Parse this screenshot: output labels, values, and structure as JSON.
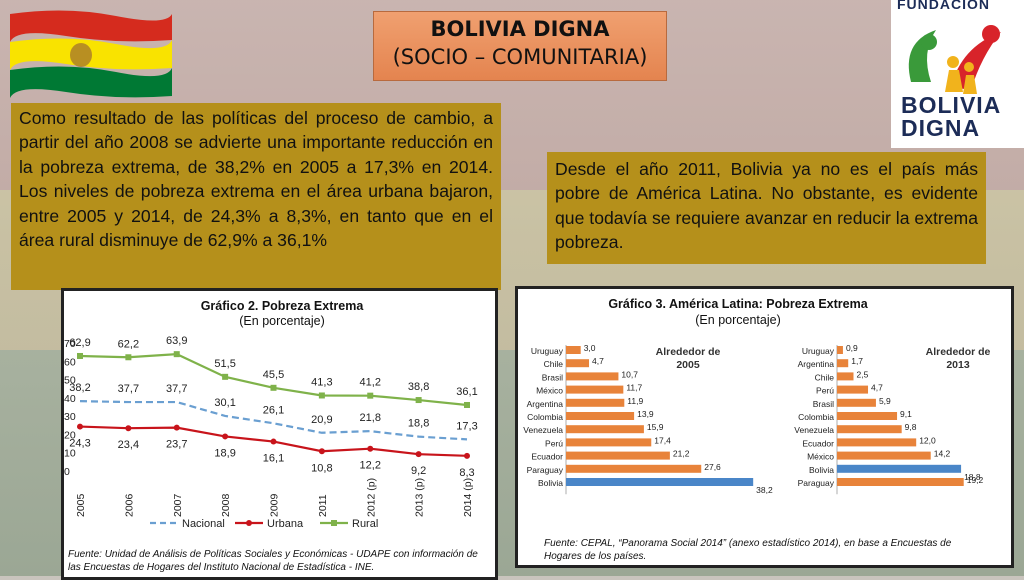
{
  "header": {
    "title_line1": "BOLIVIA DIGNA",
    "title_line2": "(SOCIO – COMUNITARIA)"
  },
  "logo": {
    "top_text": "FUNDACION",
    "line1": "BOLIVIA",
    "line2": "DIGNA"
  },
  "colors": {
    "flag_red": "#d52b1e",
    "flag_yellow": "#f9e300",
    "flag_green": "#007934",
    "text_box": "#b5901b",
    "title_box": "#e8905c",
    "rural": "#7fb24a",
    "urbana": "#c8141b",
    "nacional": "#6a9fd1",
    "bar_orange": "#e8833a",
    "bar_bolivia_2005": "#4a86c8"
  },
  "left_paragraph": "Como resultado de las políticas del proceso de cambio, a partir del año 2008 se advierte una importante reducción en la pobreza extrema, de 38,2% en 2005 a 17,3% en 2014. Los niveles de pobreza extrema en el área urbana bajaron, entre 2005 y 2014, de 24,3% a 8,3%, en tanto que en el área rural disminuye de 62,9% a 36,1%",
  "right_paragraph": "Desde el año 2011, Bolivia ya no es el país más pobre de América Latina. No obstante, es evidente que todavía se requiere avanzar en reducir la extrema pobreza.",
  "chart_data": [
    {
      "type": "line",
      "title": "Gráfico 2. Pobreza Extrema",
      "subtitle": "(En porcentaje)",
      "x": [
        "2005",
        "2006",
        "2007",
        "2008",
        "2009",
        "2011",
        "2012 (p)",
        "2013 (p)",
        "2014 (p)"
      ],
      "ylim": [
        0,
        70
      ],
      "yticks": [
        0,
        10,
        20,
        30,
        40,
        50,
        60,
        70
      ],
      "series": [
        {
          "name": "Rural",
          "values": [
            62.9,
            62.2,
            63.9,
            51.5,
            45.5,
            41.3,
            41.2,
            38.8,
            36.1
          ],
          "labels": [
            "62,9",
            "62,2",
            "63,9",
            "51,5",
            "45,5",
            "41,3",
            "41,2",
            "38,8",
            "36,1"
          ]
        },
        {
          "name": "Nacional",
          "values": [
            38.2,
            37.7,
            37.7,
            30.1,
            26.1,
            20.9,
            21.8,
            18.8,
            17.3
          ],
          "labels": [
            "38,2",
            "37,7",
            "37,7",
            "30,1",
            "26,1",
            "20,9",
            "21,8",
            "18,8",
            "17,3"
          ]
        },
        {
          "name": "Urbana",
          "values": [
            24.3,
            23.4,
            23.7,
            18.9,
            16.1,
            10.8,
            12.2,
            9.2,
            8.3
          ],
          "labels": [
            "24,3",
            "23,4",
            "23,7",
            "18,9",
            "16,1",
            "10,8",
            "12,2",
            "9,2",
            "8,3"
          ]
        }
      ],
      "legend_order": [
        "Nacional",
        "Urbana",
        "Rural"
      ],
      "source": "Fuente: Unidad de Análisis de Políticas Sociales y Económicas - UDAPE con información de las Encuestas de Hogares del Instituto Nacional de Estadística - INE."
    },
    {
      "type": "bar",
      "title": "Gráfico 3.  América Latina: Pobreza Extrema",
      "subtitle": "(En porcentaje)",
      "panels": [
        {
          "label": "Alrededor de 2005",
          "categories": [
            "Uruguay",
            "Chile",
            "Brasil",
            "México",
            "Argentina",
            "Colombia",
            "Venezuela",
            "Perú",
            "Ecuador",
            "Paraguay",
            "Bolivia"
          ],
          "values": [
            3.0,
            4.7,
            10.7,
            11.7,
            11.9,
            13.9,
            15.9,
            17.4,
            21.2,
            27.6,
            38.2
          ],
          "labels": [
            "3,0",
            "4,7",
            "10,7",
            "11,7",
            "11,9",
            "13,9",
            "15,9",
            "17,4",
            "21,2",
            "27,6",
            "38,2"
          ],
          "highlight": "Bolivia"
        },
        {
          "label": "Alrededor de 2013",
          "categories": [
            "Uruguay",
            "Argentina",
            "Chile",
            "Perú",
            "Brasil",
            "Colombia",
            "Venezuela",
            "Ecuador",
            "México",
            "Bolivia",
            "Paraguay"
          ],
          "values": [
            0.9,
            1.7,
            2.5,
            4.7,
            5.9,
            9.1,
            9.8,
            12.0,
            14.2,
            18.8,
            19.2
          ],
          "labels": [
            "0,9",
            "1,7",
            "2,5",
            "4,7",
            "5,9",
            "9,1",
            "9,8",
            "12,0",
            "14,2",
            "18,8",
            "19,2"
          ],
          "highlight": "Bolivia"
        }
      ],
      "source": "Fuente: CEPAL, “Panorama Social 2014” (anexo estadístico 2014), en base a Encuestas de Hogares de los países."
    }
  ]
}
